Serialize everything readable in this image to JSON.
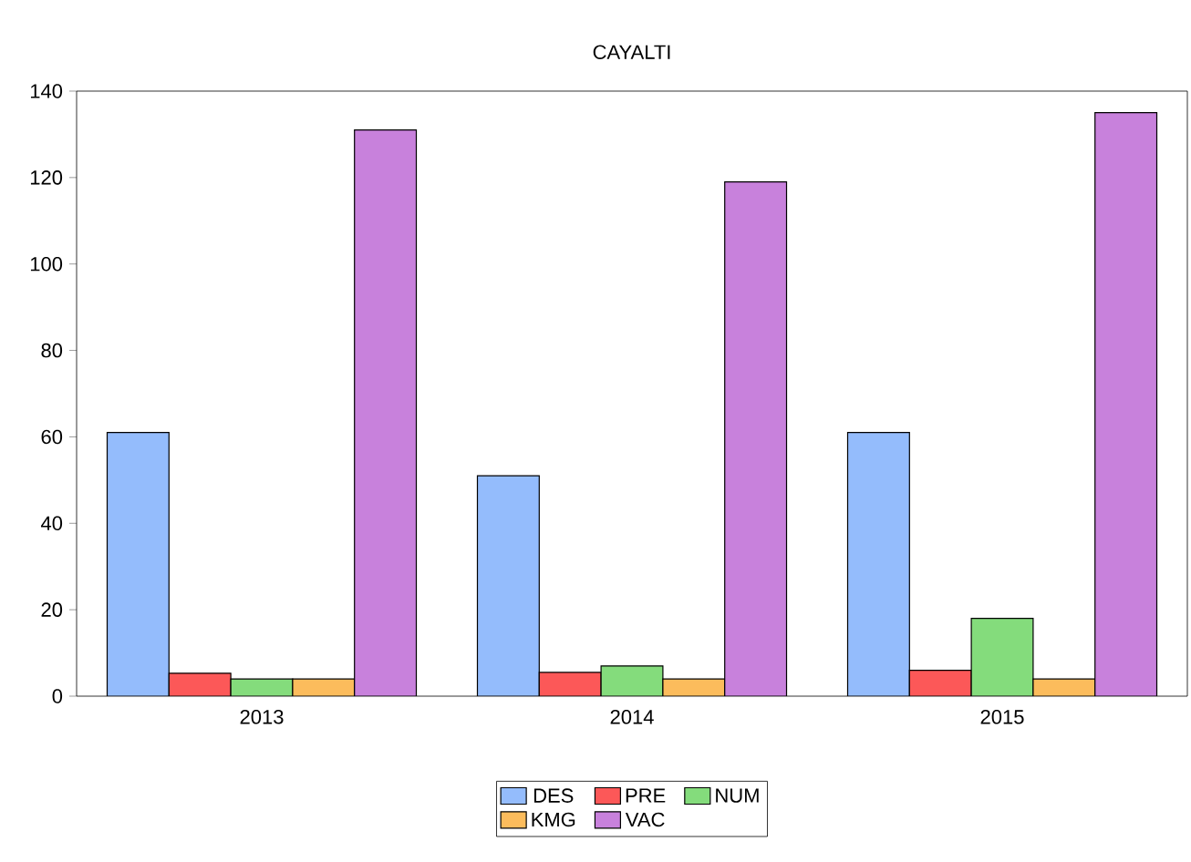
{
  "chart_data": {
    "type": "bar",
    "title": "CAYALTI",
    "categories": [
      "2013",
      "2014",
      "2015"
    ],
    "series": [
      {
        "name": "DES",
        "color": "#94bcfc",
        "values": [
          61,
          51,
          61
        ]
      },
      {
        "name": "PRE",
        "color": "#fc5858",
        "values": [
          5.3,
          5.5,
          6
        ]
      },
      {
        "name": "NUM",
        "color": "#84dc7c",
        "values": [
          4,
          7,
          18
        ]
      },
      {
        "name": "KMG",
        "color": "#fcbc5c",
        "values": [
          4,
          4,
          4
        ]
      },
      {
        "name": "VAC",
        "color": "#c881dc",
        "values": [
          131,
          119,
          135
        ]
      }
    ],
    "ylim": [
      0,
      140
    ],
    "yticks": [
      0,
      20,
      40,
      60,
      80,
      100,
      120,
      140
    ],
    "legend": "bottom"
  }
}
